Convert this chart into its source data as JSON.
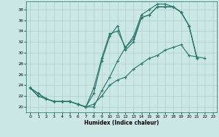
{
  "title": "",
  "xlabel": "Humidex (Indice chaleur)",
  "bg_color": "#cce8e5",
  "line_color": "#2a7a6f",
  "grid_color": "#aacfcc",
  "xlim": [
    -0.5,
    23.5
  ],
  "ylim": [
    19.0,
    39.5
  ],
  "xticks": [
    0,
    1,
    2,
    3,
    4,
    5,
    6,
    7,
    8,
    9,
    10,
    11,
    12,
    13,
    14,
    15,
    16,
    17,
    18,
    19,
    20,
    21,
    22,
    23
  ],
  "yticks": [
    20,
    22,
    24,
    26,
    28,
    30,
    32,
    34,
    36,
    38
  ],
  "series": [
    {
      "x": [
        0,
        1,
        2,
        3,
        4,
        5,
        6,
        7,
        8,
        9,
        10,
        11,
        12,
        13,
        14,
        15,
        16,
        17,
        18,
        19,
        20,
        21
      ],
      "y": [
        23.5,
        22.5,
        21.5,
        21.0,
        21.0,
        21.0,
        20.5,
        20.0,
        20.0,
        23.0,
        25.5,
        28.5,
        31.0,
        32.5,
        36.5,
        37.0,
        38.5,
        38.5,
        38.5,
        37.5,
        35.0,
        29.0
      ]
    },
    {
      "x": [
        0,
        1,
        2,
        3,
        4,
        5,
        6,
        7,
        8,
        9,
        10,
        11,
        12,
        13,
        14,
        15,
        16,
        17,
        18,
        19,
        20,
        21
      ],
      "y": [
        23.5,
        22.0,
        21.5,
        21.0,
        21.0,
        21.0,
        20.5,
        20.0,
        22.5,
        28.5,
        33.0,
        35.0,
        30.5,
        32.0,
        36.5,
        37.0,
        38.5,
        38.5,
        38.5,
        37.5,
        35.0,
        29.0
      ]
    },
    {
      "x": [
        0,
        1,
        2,
        3,
        4,
        5,
        6,
        7,
        8,
        9,
        10,
        11,
        12,
        13,
        14,
        15,
        16,
        17,
        18,
        19,
        20,
        21
      ],
      "y": [
        23.5,
        22.0,
        21.5,
        21.0,
        21.0,
        21.0,
        20.5,
        20.0,
        23.5,
        29.0,
        33.5,
        34.0,
        31.0,
        33.0,
        37.0,
        38.0,
        39.0,
        39.0,
        38.5,
        37.5,
        35.0,
        29.0
      ]
    },
    {
      "x": [
        0,
        1,
        2,
        3,
        4,
        5,
        6,
        7,
        8,
        9,
        10,
        11,
        12,
        13,
        14,
        15,
        16,
        17,
        18,
        19,
        20,
        22
      ],
      "y": [
        23.5,
        22.5,
        21.5,
        21.0,
        21.0,
        21.0,
        20.5,
        20.0,
        20.5,
        22.0,
        24.0,
        25.0,
        25.5,
        27.0,
        28.0,
        29.0,
        29.5,
        30.5,
        31.0,
        31.5,
        29.5,
        29.0
      ]
    }
  ]
}
